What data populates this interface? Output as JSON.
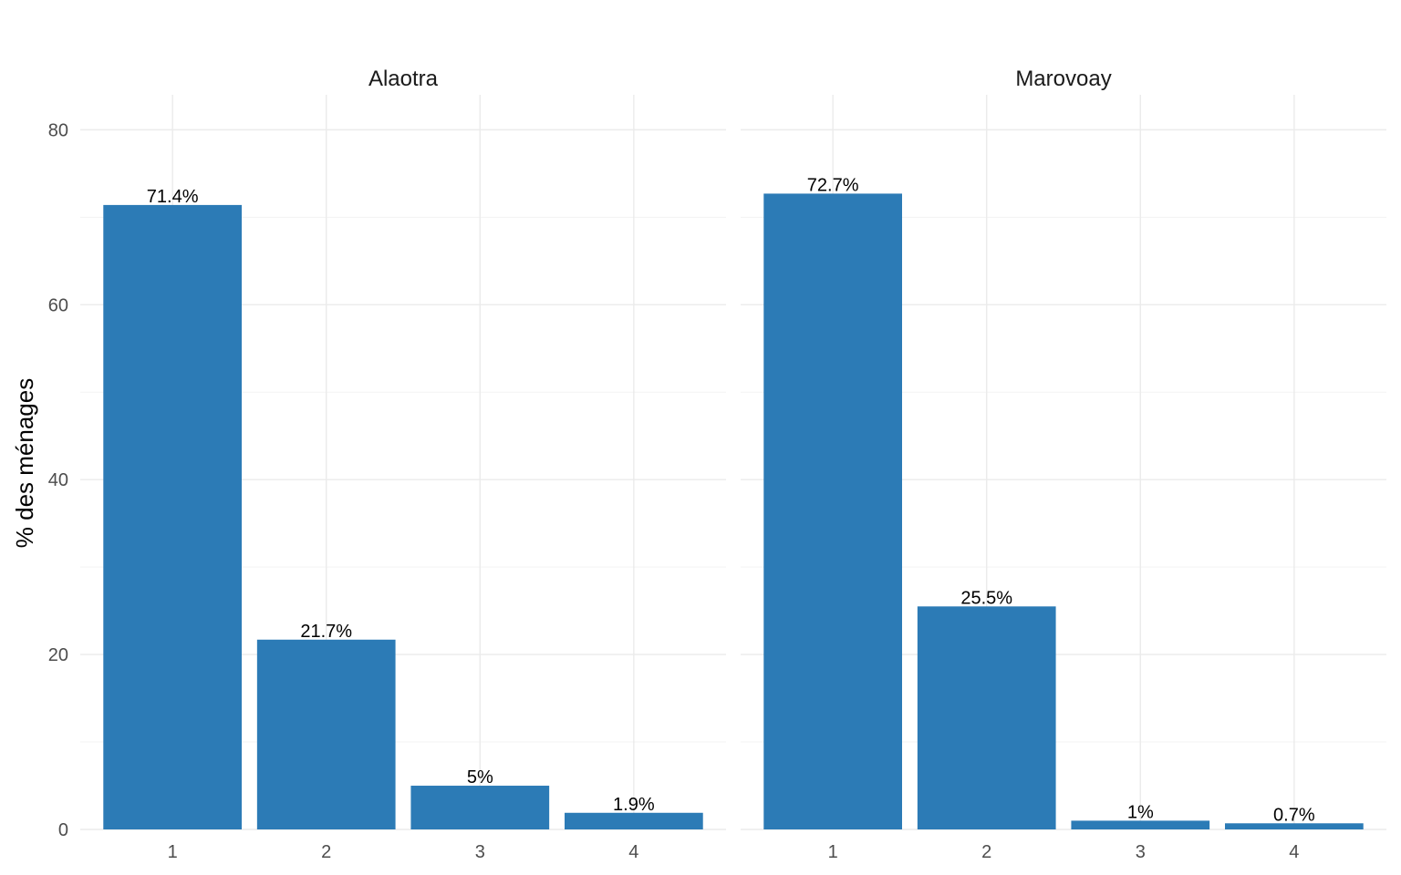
{
  "chart_data": {
    "type": "bar",
    "ylabel": "% des ménages",
    "ylim": [
      0,
      84
    ],
    "yticks": [
      0,
      20,
      40,
      60,
      80
    ],
    "grid": true,
    "bar_color": "#2c7bb6",
    "categories": [
      "1",
      "2",
      "3",
      "4"
    ],
    "panels": [
      {
        "name": "Alaotra",
        "values": [
          71.4,
          21.7,
          5,
          1.9
        ],
        "labels": [
          "71.4%",
          "21.7%",
          "5%",
          "1.9%"
        ]
      },
      {
        "name": "Marovoay",
        "values": [
          72.7,
          25.5,
          1,
          0.7
        ],
        "labels": [
          "72.7%",
          "25.5%",
          "1%",
          "0.7%"
        ]
      }
    ]
  }
}
